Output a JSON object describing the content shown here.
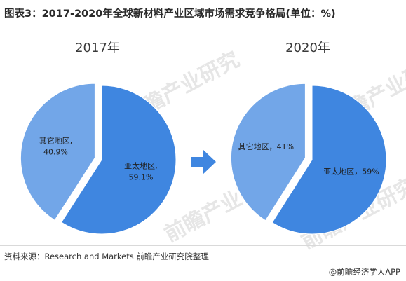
{
  "title": "图表3：2017-2020年全球新材料产业区域市场需求竞争格局(单位：%)",
  "source": "资料来源：Research and Markets 前瞻产业研究院整理",
  "brand": "@前瞻经济学人APP",
  "watermark_text": "前瞻产业研究",
  "colors": {
    "asia_pacific": "#3f86e0",
    "other": "#72a6e8",
    "arrow": "#3f86e0",
    "label_text": "#1f1f1f"
  },
  "chart_data": [
    {
      "type": "pie",
      "title": "2017年",
      "slices": [
        {
          "label": "亚太地区,",
          "value_label": "59.1%",
          "value": 59.1,
          "color": "#3f86e0"
        },
        {
          "label": "其它地区,",
          "value_label": "40.9%",
          "value": 40.9,
          "color": "#72a6e8"
        }
      ]
    },
    {
      "type": "pie",
      "title": "2020年",
      "slices": [
        {
          "label": "亚太地区，59%",
          "value_label": "",
          "value": 59,
          "color": "#3f86e0"
        },
        {
          "label": "其它地区，41%",
          "value_label": "",
          "value": 41,
          "color": "#72a6e8"
        }
      ]
    }
  ]
}
